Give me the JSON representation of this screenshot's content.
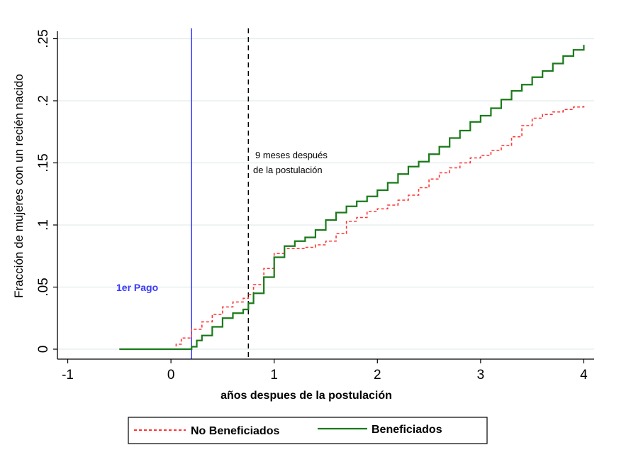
{
  "chart_data": {
    "type": "line",
    "title": "",
    "xlabel": "años despues de la postulación",
    "ylabel": "Fracción de mujeres con un recién nacido",
    "xlim": [
      -1.1,
      4.1
    ],
    "ylim": [
      -0.008,
      0.256
    ],
    "x_ticks": [
      -1,
      0,
      1,
      2,
      3,
      4
    ],
    "x_tick_labels": [
      "-1",
      "0",
      "1",
      "2",
      "3",
      "4"
    ],
    "y_ticks": [
      0,
      0.05,
      0.1,
      0.15,
      0.2,
      0.25
    ],
    "y_tick_labels": [
      "0",
      ".05",
      ".1",
      ".15",
      ".2",
      ".25"
    ],
    "grid": true,
    "legend_position": "bottom",
    "series": [
      {
        "name": "No Beneficiados",
        "color": "#ff3333",
        "style": "dashed",
        "x": [
          -0.5,
          0.0,
          0.05,
          0.1,
          0.2,
          0.3,
          0.4,
          0.5,
          0.6,
          0.7,
          0.75,
          0.8,
          0.9,
          1.0,
          1.1,
          1.2,
          1.3,
          1.4,
          1.5,
          1.6,
          1.7,
          1.8,
          1.9,
          2.0,
          2.1,
          2.2,
          2.3,
          2.4,
          2.5,
          2.6,
          2.7,
          2.8,
          2.9,
          3.0,
          3.1,
          3.2,
          3.3,
          3.4,
          3.5,
          3.6,
          3.7,
          3.8,
          3.9,
          4.0
        ],
        "y": [
          0,
          0,
          0.004,
          0.009,
          0.016,
          0.022,
          0.028,
          0.034,
          0.038,
          0.041,
          0.044,
          0.052,
          0.065,
          0.077,
          0.081,
          0.081,
          0.082,
          0.084,
          0.087,
          0.093,
          0.103,
          0.106,
          0.111,
          0.113,
          0.116,
          0.12,
          0.124,
          0.13,
          0.137,
          0.142,
          0.146,
          0.15,
          0.154,
          0.156,
          0.16,
          0.164,
          0.171,
          0.18,
          0.186,
          0.189,
          0.191,
          0.193,
          0.195,
          0.197
        ]
      },
      {
        "name": "Beneficiados",
        "color": "#1a7a1a",
        "style": "solid",
        "x": [
          -0.5,
          0.0,
          0.2,
          0.25,
          0.3,
          0.4,
          0.5,
          0.6,
          0.7,
          0.75,
          0.8,
          0.9,
          1.0,
          1.1,
          1.2,
          1.3,
          1.4,
          1.5,
          1.6,
          1.7,
          1.8,
          1.9,
          2.0,
          2.1,
          2.2,
          2.3,
          2.4,
          2.5,
          2.6,
          2.7,
          2.8,
          2.9,
          3.0,
          3.1,
          3.2,
          3.3,
          3.4,
          3.5,
          3.6,
          3.7,
          3.8,
          3.9,
          4.0
        ],
        "y": [
          0,
          0,
          0.002,
          0.007,
          0.011,
          0.018,
          0.025,
          0.029,
          0.032,
          0.037,
          0.045,
          0.058,
          0.074,
          0.083,
          0.087,
          0.09,
          0.096,
          0.104,
          0.11,
          0.115,
          0.119,
          0.123,
          0.128,
          0.134,
          0.141,
          0.147,
          0.151,
          0.157,
          0.163,
          0.17,
          0.176,
          0.183,
          0.188,
          0.194,
          0.201,
          0.208,
          0.213,
          0.219,
          0.224,
          0.23,
          0.236,
          0.241,
          0.245
        ]
      }
    ],
    "vertical_lines": [
      {
        "x": 0.2,
        "color": "#3a3aff",
        "style": "solid",
        "label": "1er Pago"
      },
      {
        "x": 0.75,
        "color": "#000000",
        "style": "dashed",
        "label_lines": [
          "9 meses después",
          "de la postulación"
        ]
      }
    ]
  }
}
